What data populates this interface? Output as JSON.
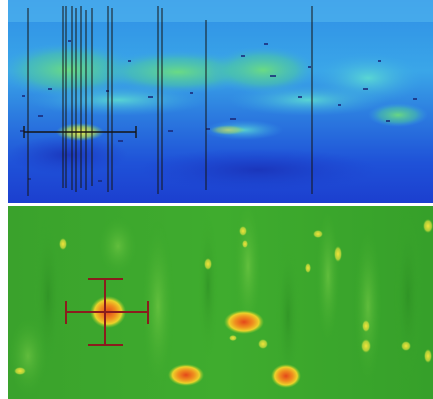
{
  "panels": [
    {
      "id": "top",
      "kind": "heatmap",
      "colormap": "jet",
      "cursor": "horizontal-range-marker",
      "cursor_color": "#111111",
      "vertical_lines_color": "#111111"
    },
    {
      "id": "bottom",
      "kind": "heatmap",
      "colormap": "green-yellow-red",
      "cursor": "crosshair-marker",
      "cursor_color": "#8a1d1d"
    }
  ],
  "colors": {
    "top_background": "#2a63e0",
    "top_hot": "#e6e63a",
    "bottom_background": "#3aa62a",
    "bottom_hot": "#e8571c",
    "bottom_warm": "#ecd02a",
    "separator": "#ffffff"
  }
}
